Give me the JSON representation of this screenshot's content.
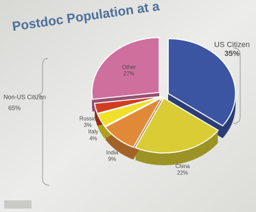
{
  "chart_data": {
    "type": "pie",
    "title": "Postdoc Population at a",
    "categories": [
      "US Citizen",
      "China",
      "India",
      "Italy",
      "Russia",
      "Other"
    ],
    "values": [
      35,
      22,
      9,
      4,
      3,
      27
    ],
    "value_labels": [
      "35%",
      "22%",
      "9%",
      "4%",
      "3%",
      "27%"
    ],
    "colors": [
      "#3b55a3",
      "#d9cc35",
      "#e08a38",
      "#f2df2a",
      "#cf3d22",
      "#cf6f9e"
    ],
    "group_label": "Non-US Citizen",
    "group_value_label": "65%"
  }
}
